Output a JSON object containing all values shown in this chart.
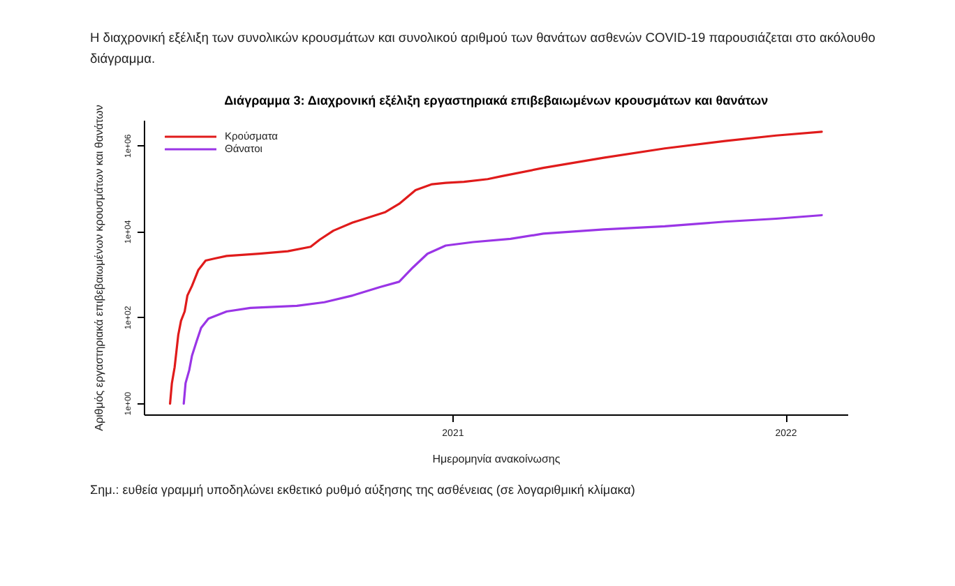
{
  "chart_data": {
    "type": "line",
    "title": "Διάγραμμα 3: Διαχρονική εξέλιξη εργαστηριακά επιβεβαιωμένων κρουσμάτων και θανάτων",
    "xlabel": "Ημερομηνία ανακοίνωσης",
    "ylabel": "Αριθμός εργαστηριακά επιβεβαιωμένων κρουσμάτων και θανάτων",
    "annotations": [
      "Η διαχρονική εξέλιξη των συνολικών κρουσμάτων και συνολικού αριθμού των θανάτων ασθενών COVID-19 παρουσιάζεται στο ακόλουθο διάγραμμα.",
      "Σημ.: ευθεία γραμμή υποδηλώνει εκθετικό ρυθμό αύξησης της ασθένειας (σε λογαριθμική κλίμακα)"
    ],
    "log": "y",
    "legend": "top left",
    "xlim": [
      "2020-01-29",
      "2022-03-10"
    ],
    "xticks": [
      "2021",
      "2022"
    ],
    "ylim": [
      0.54,
      3900000
    ],
    "yticks": [
      {
        "value": 1,
        "label": "1e+00"
      },
      {
        "value": 100,
        "label": "1e+02"
      },
      {
        "value": 10000,
        "label": "1e+04"
      },
      {
        "value": 1000000,
        "label": "1e+06"
      }
    ],
    "series": [
      {
        "name": "Κρούσματα",
        "color": "#e01b1b",
        "x": [
          "2020-02-26",
          "2020-02-28",
          "2020-03-02",
          "2020-03-06",
          "2020-03-09",
          "2020-03-13",
          "2020-03-16",
          "2020-03-21",
          "2020-03-28",
          "2020-04-05",
          "2020-04-15",
          "2020-04-28",
          "2020-06-03",
          "2020-07-04",
          "2020-07-29",
          "2020-08-08",
          "2020-08-23",
          "2020-09-13",
          "2020-10-19",
          "2020-11-03",
          "2020-11-21",
          "2020-12-09",
          "2020-12-24",
          "2021-01-13",
          "2021-02-08",
          "2021-02-23",
          "2021-04-10",
          "2021-06-15",
          "2021-08-21",
          "2021-10-26",
          "2021-12-21",
          "2022-02-09"
        ],
        "values": [
          1,
          3,
          7,
          40,
          85,
          140,
          330,
          550,
          1300,
          2150,
          2400,
          2750,
          3100,
          3550,
          4500,
          6600,
          10700,
          16500,
          29000,
          45000,
          94000,
          129000,
          139000,
          147000,
          170000,
          198000,
          310000,
          535000,
          880000,
          1310000,
          1760000,
          2160000
        ]
      },
      {
        "name": "Θάνατοι",
        "color": "#9a35e6",
        "x": [
          "2020-03-12",
          "2020-03-14",
          "2020-03-18",
          "2020-03-21",
          "2020-03-26",
          "2020-03-31",
          "2020-04-08",
          "2020-04-28",
          "2020-05-24",
          "2020-07-14",
          "2020-08-13",
          "2020-09-13",
          "2020-10-13",
          "2020-11-03",
          "2020-11-18",
          "2020-12-04",
          "2020-12-24",
          "2021-01-23",
          "2021-03-05",
          "2021-04-10",
          "2021-06-15",
          "2021-08-21",
          "2021-10-26",
          "2021-12-21",
          "2022-02-09"
        ],
        "values": [
          1,
          3,
          6,
          13,
          28,
          58,
          95,
          140,
          170,
          190,
          230,
          330,
          520,
          690,
          1480,
          3100,
          4800,
          5800,
          6900,
          9100,
          11400,
          13500,
          17300,
          20300,
          24500
        ]
      }
    ]
  }
}
